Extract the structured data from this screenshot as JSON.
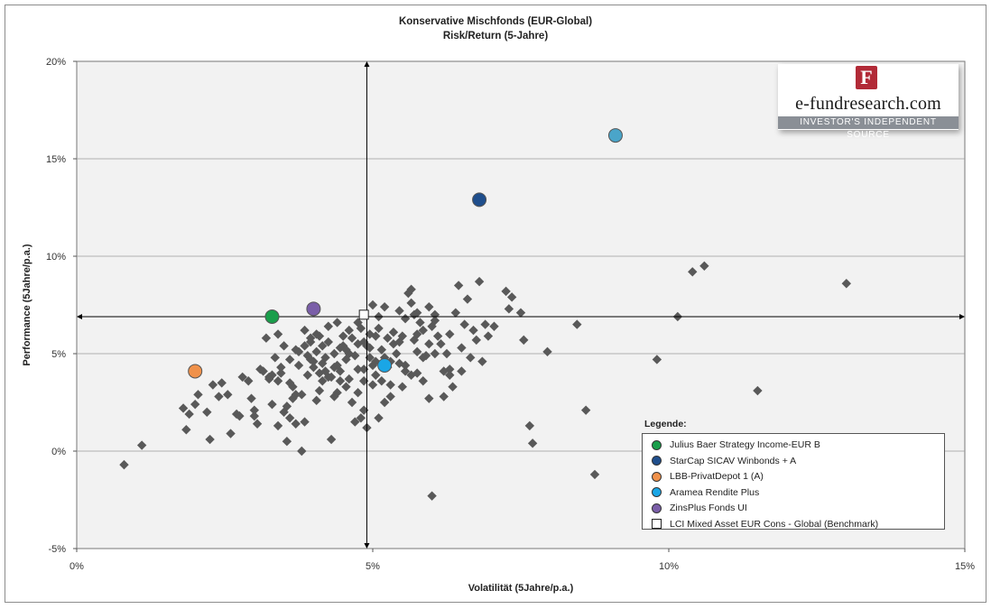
{
  "chart_data": {
    "type": "scatter",
    "title": "Konservative Mischfonds  (EUR-Global)",
    "subtitle": "Risk/Return (5-Jahre)",
    "xlabel": "Volatilität (5Jahre/p.a.)",
    "ylabel": "Performance (5Jahre/p.a.)",
    "xlim": [
      0,
      15
    ],
    "ylim": [
      -5,
      20
    ],
    "xticks": [
      0,
      5,
      10,
      15
    ],
    "xtick_labels": [
      "0%",
      "5%",
      "10%",
      "15%"
    ],
    "yticks": [
      -5,
      0,
      5,
      10,
      15,
      20
    ],
    "ytick_labels": [
      "-5%",
      "0%",
      "5%",
      "10%",
      "15%",
      "20%"
    ],
    "grid": "horizontal",
    "crosshair": {
      "x": 4.9,
      "y": 6.9
    },
    "background_series": {
      "marker": "diamond",
      "color": "#595959",
      "points": [
        [
          0.8,
          -0.7
        ],
        [
          1.1,
          0.3
        ],
        [
          1.8,
          2.2
        ],
        [
          1.9,
          1.9
        ],
        [
          1.85,
          1.1
        ],
        [
          2.0,
          2.4
        ],
        [
          2.05,
          2.9
        ],
        [
          2.2,
          2.0
        ],
        [
          2.25,
          0.6
        ],
        [
          2.3,
          3.4
        ],
        [
          2.45,
          3.5
        ],
        [
          2.4,
          2.8
        ],
        [
          2.6,
          0.9
        ],
        [
          2.7,
          1.9
        ],
        [
          2.75,
          1.8
        ],
        [
          2.8,
          3.8
        ],
        [
          2.95,
          2.7
        ],
        [
          3.0,
          2.1
        ],
        [
          3.0,
          1.8
        ],
        [
          3.05,
          1.4
        ],
        [
          3.1,
          4.2
        ],
        [
          3.2,
          5.8
        ],
        [
          3.25,
          3.8
        ],
        [
          3.3,
          2.4
        ],
        [
          3.35,
          4.8
        ],
        [
          3.4,
          3.6
        ],
        [
          3.4,
          6.0
        ],
        [
          3.45,
          4.0
        ],
        [
          3.5,
          5.4
        ],
        [
          3.5,
          2.0
        ],
        [
          3.55,
          0.5
        ],
        [
          3.6,
          1.7
        ],
        [
          3.6,
          4.7
        ],
        [
          3.65,
          3.3
        ],
        [
          3.7,
          2.9
        ],
        [
          3.7,
          1.4
        ],
        [
          3.75,
          4.4
        ],
        [
          3.8,
          0.0
        ],
        [
          3.8,
          2.9
        ],
        [
          3.85,
          5.4
        ],
        [
          3.85,
          1.5
        ],
        [
          3.9,
          4.9
        ],
        [
          3.9,
          3.9
        ],
        [
          3.95,
          5.6
        ],
        [
          4.0,
          4.6
        ],
        [
          4.0,
          4.3
        ],
        [
          4.05,
          2.6
        ],
        [
          4.05,
          5.1
        ],
        [
          4.1,
          4.0
        ],
        [
          4.1,
          5.9
        ],
        [
          4.15,
          3.6
        ],
        [
          4.2,
          4.8
        ],
        [
          4.2,
          4.1
        ],
        [
          4.25,
          5.6
        ],
        [
          4.3,
          0.6
        ],
        [
          4.3,
          3.8
        ],
        [
          4.35,
          2.8
        ],
        [
          4.35,
          5.0
        ],
        [
          4.4,
          6.6
        ],
        [
          4.4,
          4.4
        ],
        [
          4.45,
          4.1
        ],
        [
          4.5,
          5.4
        ],
        [
          4.5,
          5.9
        ],
        [
          4.55,
          4.7
        ],
        [
          4.55,
          3.3
        ],
        [
          4.6,
          5.0
        ],
        [
          4.65,
          2.5
        ],
        [
          4.6,
          3.7
        ],
        [
          4.7,
          4.9
        ],
        [
          4.7,
          1.5
        ],
        [
          4.75,
          5.5
        ],
        [
          4.75,
          4.2
        ],
        [
          4.8,
          6.3
        ],
        [
          4.8,
          1.7
        ],
        [
          4.85,
          2.1
        ],
        [
          4.85,
          4.2
        ],
        [
          4.9,
          5.4
        ],
        [
          4.95,
          5.3
        ],
        [
          5.0,
          7.5
        ],
        [
          5.0,
          4.4
        ],
        [
          5.05,
          3.9
        ],
        [
          5.1,
          6.3
        ],
        [
          5.05,
          5.9
        ],
        [
          5.1,
          6.9
        ],
        [
          5.1,
          1.7
        ],
        [
          5.15,
          3.6
        ],
        [
          5.2,
          4.8
        ],
        [
          5.2,
          7.4
        ],
        [
          5.25,
          4.3
        ],
        [
          5.3,
          2.8
        ],
        [
          5.3,
          3.4
        ],
        [
          5.35,
          5.5
        ],
        [
          5.4,
          5.0
        ],
        [
          5.45,
          4.5
        ],
        [
          5.5,
          5.9
        ],
        [
          5.55,
          6.8
        ],
        [
          5.6,
          8.1
        ],
        [
          5.65,
          8.3
        ],
        [
          5.7,
          5.7
        ],
        [
          5.75,
          6.0
        ],
        [
          5.75,
          5.1
        ],
        [
          5.8,
          6.6
        ],
        [
          5.85,
          3.6
        ],
        [
          5.9,
          4.9
        ],
        [
          5.95,
          2.7
        ],
        [
          6.0,
          6.4
        ],
        [
          6.05,
          6.7
        ],
        [
          6.1,
          5.9
        ],
        [
          6.15,
          5.5
        ],
        [
          6.2,
          4.1
        ],
        [
          6.25,
          5.0
        ],
        [
          6.3,
          6.0
        ],
        [
          6.3,
          3.9
        ],
        [
          6.35,
          3.3
        ],
        [
          6.4,
          7.1
        ],
        [
          6.45,
          8.5
        ],
        [
          6.5,
          5.3
        ],
        [
          6.55,
          6.5
        ],
        [
          6.6,
          7.8
        ],
        [
          6.65,
          4.8
        ],
        [
          6.7,
          6.2
        ],
        [
          6.75,
          5.7
        ],
        [
          6.8,
          8.7
        ],
        [
          6.85,
          4.6
        ],
        [
          6.9,
          6.5
        ],
        [
          6.95,
          5.9
        ],
        [
          7.05,
          6.4
        ],
        [
          7.25,
          8.2
        ],
        [
          7.3,
          7.3
        ],
        [
          7.35,
          7.9
        ],
        [
          7.5,
          7.1
        ],
        [
          7.55,
          5.7
        ],
        [
          7.65,
          1.3
        ],
        [
          7.7,
          0.4
        ],
        [
          6.0,
          -2.3
        ],
        [
          6.2,
          2.8
        ],
        [
          6.5,
          4.1
        ],
        [
          6.3,
          4.2
        ],
        [
          7.95,
          5.1
        ],
        [
          8.45,
          6.5
        ],
        [
          8.6,
          2.1
        ],
        [
          8.75,
          -1.2
        ],
        [
          9.8,
          4.7
        ],
        [
          10.15,
          6.9
        ],
        [
          10.4,
          9.2
        ],
        [
          10.6,
          9.5
        ],
        [
          11.5,
          3.1
        ],
        [
          13.0,
          8.6
        ],
        [
          3.25,
          3.7
        ],
        [
          3.6,
          3.5
        ],
        [
          3.75,
          5.1
        ],
        [
          3.95,
          4.7
        ],
        [
          4.15,
          4.5
        ],
        [
          4.25,
          3.8
        ],
        [
          4.45,
          5.3
        ],
        [
          4.6,
          6.2
        ],
        [
          4.65,
          5.8
        ],
        [
          4.85,
          5.6
        ],
        [
          5.15,
          5.2
        ],
        [
          5.25,
          5.8
        ],
        [
          5.45,
          5.6
        ],
        [
          5.55,
          4.1
        ],
        [
          5.65,
          3.9
        ],
        [
          5.35,
          6.1
        ],
        [
          5.45,
          7.2
        ],
        [
          5.65,
          7.6
        ],
        [
          5.7,
          7.0
        ],
        [
          5.05,
          4.6
        ],
        [
          4.95,
          6.0
        ],
        [
          4.55,
          5.2
        ],
        [
          4.35,
          4.3
        ],
        [
          4.15,
          5.4
        ],
        [
          3.95,
          5.8
        ],
        [
          3.85,
          6.2
        ],
        [
          3.7,
          5.2
        ],
        [
          3.45,
          4.3
        ],
        [
          3.3,
          3.9
        ],
        [
          3.15,
          4.1
        ],
        [
          2.9,
          3.6
        ],
        [
          2.55,
          2.9
        ],
        [
          4.4,
          3.0
        ],
        [
          4.75,
          3.0
        ],
        [
          5.0,
          3.4
        ],
        [
          5.3,
          4.6
        ],
        [
          5.95,
          5.5
        ],
        [
          6.05,
          5.0
        ],
        [
          5.85,
          6.2
        ],
        [
          4.05,
          6.0
        ],
        [
          4.25,
          6.4
        ],
        [
          4.75,
          6.6
        ],
        [
          5.75,
          7.1
        ],
        [
          5.95,
          7.4
        ],
        [
          6.05,
          7.0
        ],
        [
          4.85,
          3.6
        ],
        [
          4.45,
          3.6
        ],
        [
          4.1,
          3.1
        ],
        [
          3.65,
          2.7
        ],
        [
          3.55,
          2.3
        ],
        [
          3.4,
          1.3
        ],
        [
          4.9,
          1.2
        ],
        [
          4.95,
          4.8
        ],
        [
          5.55,
          4.4
        ],
        [
          5.75,
          4.0
        ],
        [
          5.85,
          4.8
        ],
        [
          5.5,
          3.3
        ],
        [
          5.2,
          2.5
        ]
      ]
    },
    "series": [
      {
        "name": "Julius Baer Strategy Income-EUR B",
        "color": "#1a9e4b",
        "x": 3.3,
        "y": 6.9
      },
      {
        "name": "StarCap SICAV Winbonds + A",
        "color": "#1f4e8c",
        "x": 6.8,
        "y": 12.9
      },
      {
        "name": "LBB-PrivatDepot 1 (A)",
        "color": "#f0914a",
        "x": 2.0,
        "y": 4.1
      },
      {
        "name": "Aramea Rendite Plus",
        "color": "#1aa6e6",
        "x": 5.2,
        "y": 4.4
      },
      {
        "name": "ZinsPlus Fonds UI",
        "color": "#7a5ea8",
        "x": 4.0,
        "y": 7.3
      },
      {
        "name": "LCI Mixed Asset EUR Cons - Global (Benchmark)",
        "color": "#ffffff",
        "x": 4.85,
        "y": 7.0,
        "marker": "square"
      }
    ],
    "extra_points": [
      {
        "color": "#4aa5c9",
        "x": 9.1,
        "y": 16.2
      }
    ],
    "legend": {
      "title": "Legende:",
      "placement": "bottom-right"
    }
  },
  "logo": {
    "letter": "F",
    "text": "e-fundresearch.com",
    "tagline": "INVESTOR'S INDEPENDENT SOURCE"
  }
}
